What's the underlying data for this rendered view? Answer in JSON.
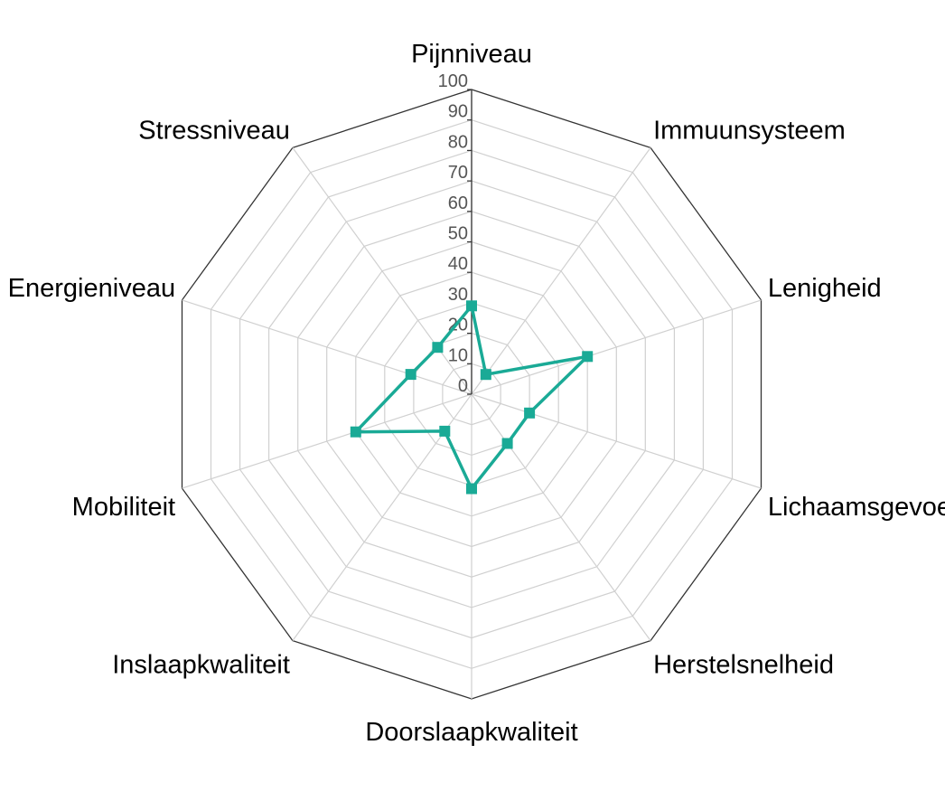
{
  "chart_data": {
    "type": "radar",
    "axes": [
      "Pijnniveau",
      "Immuunsysteem",
      "Lenigheid",
      "Lichaamsgevoel",
      "Herstelsnelheid",
      "Doorslaapkwaliteit",
      "Inslaapkwaliteit",
      "Mobiliteit",
      "Energieniveau",
      "Stressniveau"
    ],
    "series": [
      {
        "values": [
          29,
          8,
          40,
          20,
          20,
          31,
          15,
          40,
          21,
          19
        ]
      }
    ],
    "range": [
      0,
      100
    ],
    "ticks": [
      0,
      10,
      20,
      30,
      40,
      50,
      60,
      70,
      80,
      90,
      100
    ],
    "grid": true,
    "colors": {
      "series": "#1aaa96",
      "grid": "#d0d0d0",
      "outline": "#333333",
      "tick": "#555555"
    }
  }
}
